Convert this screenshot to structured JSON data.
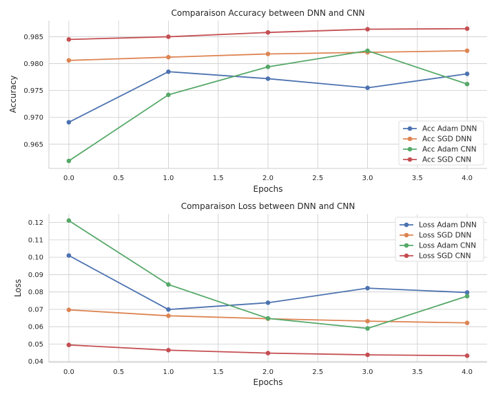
{
  "chart_data": [
    {
      "type": "line",
      "title": "Comparaison Accuracy between DNN and CNN",
      "xlabel": "Epochs",
      "ylabel": "Accuracy",
      "x": [
        0,
        1,
        2,
        3,
        4
      ],
      "xlim": [
        -0.2,
        4.2
      ],
      "ylim": [
        0.9605,
        0.988
      ],
      "xticks": [
        "0.0",
        "0.5",
        "1.0",
        "1.5",
        "2.0",
        "2.5",
        "3.0",
        "3.5",
        "4.0"
      ],
      "yticks": [
        "0.965",
        "0.970",
        "0.975",
        "0.980",
        "0.985"
      ],
      "grid": true,
      "legend_position": "lower-right",
      "series": [
        {
          "name": "Acc Adam DNN",
          "color": "#4c72b0",
          "values": [
            0.9691,
            0.9785,
            0.9772,
            0.9755,
            0.9781
          ]
        },
        {
          "name": "Acc SGD DNN",
          "color": "#dd8452",
          "values": [
            0.9806,
            0.9812,
            0.9818,
            0.9821,
            0.9824
          ]
        },
        {
          "name": "Acc Adam CNN",
          "color": "#55a868",
          "values": [
            0.9619,
            0.9742,
            0.9794,
            0.9824,
            0.9762
          ]
        },
        {
          "name": "Acc SGD CNN",
          "color": "#c44e52",
          "values": [
            0.9845,
            0.985,
            0.9858,
            0.9864,
            0.9865
          ]
        }
      ]
    },
    {
      "type": "line",
      "title": "Comparaison Loss between DNN and CNN",
      "xlabel": "Epochs",
      "ylabel": "Loss",
      "x": [
        0,
        1,
        2,
        3,
        4
      ],
      "xlim": [
        -0.2,
        4.2
      ],
      "ylim": [
        0.0395,
        0.125
      ],
      "xticks": [
        "0.0",
        "0.5",
        "1.0",
        "1.5",
        "2.0",
        "2.5",
        "3.0",
        "3.5",
        "4.0"
      ],
      "yticks": [
        "0.04",
        "0.05",
        "0.06",
        "0.07",
        "0.08",
        "0.09",
        "0.10",
        "0.11",
        "0.12"
      ],
      "grid": true,
      "legend_position": "top-right",
      "series": [
        {
          "name": "Loss Adam DNN",
          "color": "#4c72b0",
          "values": [
            0.101,
            0.0699,
            0.0738,
            0.0822,
            0.0797
          ]
        },
        {
          "name": "Loss SGD DNN",
          "color": "#dd8452",
          "values": [
            0.0697,
            0.0663,
            0.0646,
            0.0632,
            0.0622
          ]
        },
        {
          "name": "Loss Adam CNN",
          "color": "#55a868",
          "values": [
            0.1211,
            0.0843,
            0.0648,
            0.059,
            0.0776
          ]
        },
        {
          "name": "Loss SGD CNN",
          "color": "#c44e52",
          "values": [
            0.0495,
            0.0465,
            0.0448,
            0.0438,
            0.0433
          ]
        }
      ]
    }
  ]
}
